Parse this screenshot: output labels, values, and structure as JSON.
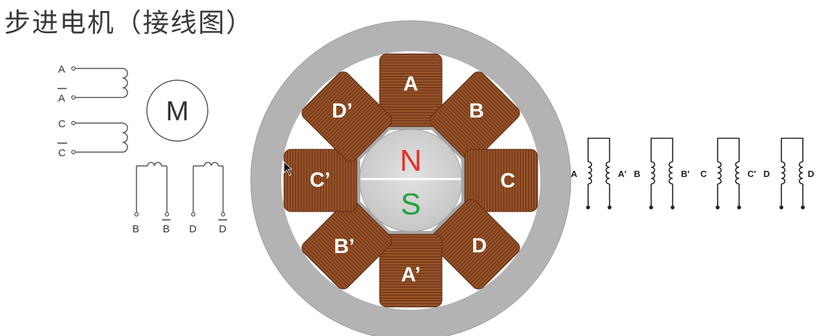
{
  "title": "步进电机（接线图）",
  "left_schematic": {
    "terminals": {
      "a": "A",
      "a_bar": "A",
      "c": "C",
      "c_bar": "C",
      "b": "B",
      "b_bar": "B",
      "d": "D",
      "d_bar": "D"
    },
    "motor_symbol": "M"
  },
  "motor": {
    "poles": {
      "a": "A",
      "b": "B",
      "c": "C",
      "d": "D",
      "a_prime": "A’",
      "b_prime": "B’",
      "c_prime": "C’",
      "d_prime": "D’"
    },
    "rotor": {
      "north": "N",
      "south": "S",
      "north_color": "#e8302a",
      "south_color": "#22a33a"
    },
    "colors": {
      "stator": "#b3b3b3",
      "coil": "#7b3f1f"
    }
  },
  "right_coils": {
    "a": "A",
    "a_prime": "A'",
    "b": "B",
    "b_prime": "B'",
    "c": "C",
    "c_prime": "C'",
    "d": "D",
    "d_prime": "D"
  }
}
